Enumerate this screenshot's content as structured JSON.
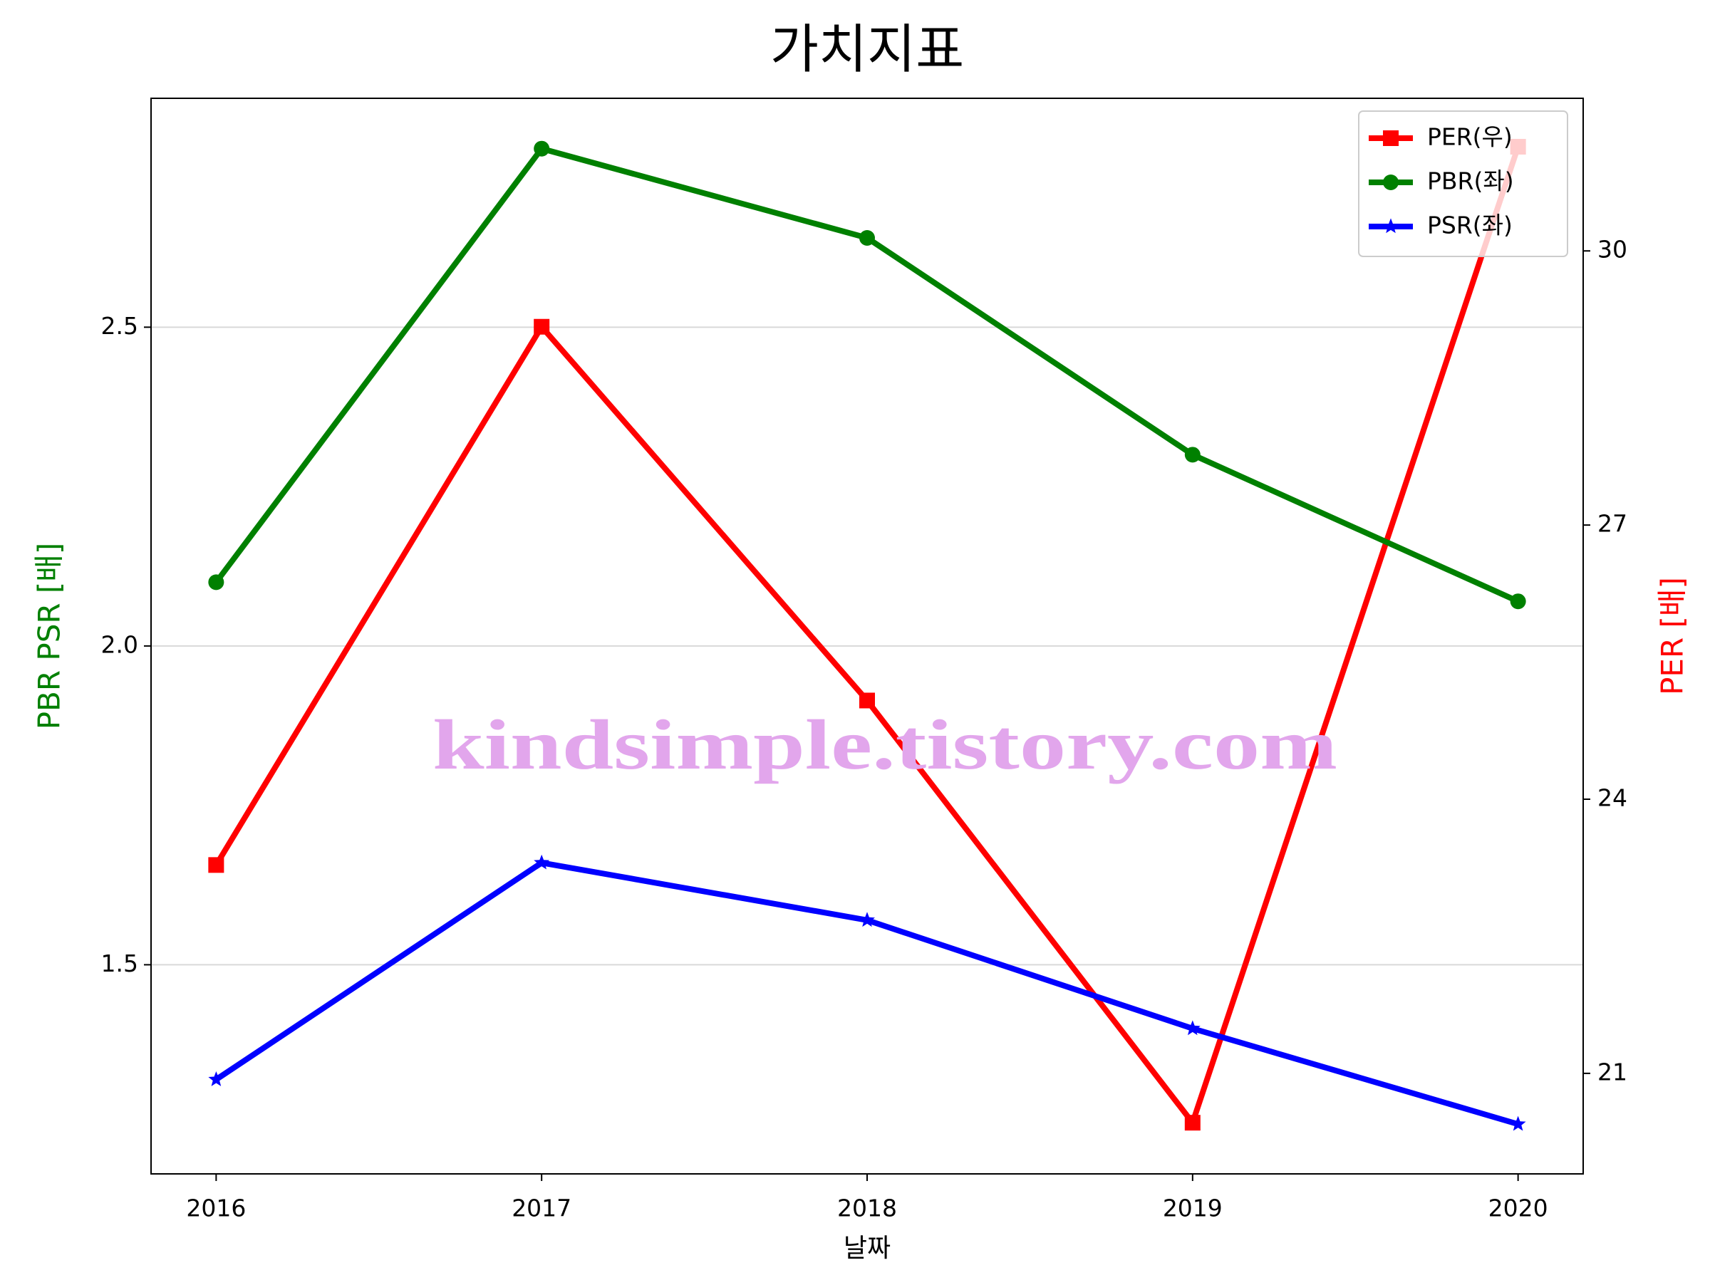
{
  "chart_data": {
    "type": "line",
    "title": "가치지표",
    "x_label": "날짜",
    "y_label": "PBR PSR [배]",
    "y2_label": "PER [배]",
    "annotation": "kindsimple.tistory.com",
    "x": [
      2016,
      2017,
      2018,
      2019,
      2020
    ],
    "xlim": [
      2015.8,
      2020.2
    ],
    "xticks": [
      2016,
      2017,
      2018,
      2019,
      2020
    ],
    "ylim": [
      1.172,
      2.859
    ],
    "yticks": [
      1.5,
      {
        "value": 2,
        "label": "2.0"
      },
      2.5
    ],
    "y2lim": [
      19.9,
      31.67
    ],
    "y2ticks": [
      21,
      24,
      27,
      30
    ],
    "grid": "y",
    "legend": "upper right",
    "series": [
      {
        "name": "PER(우)",
        "color": "#ff0000",
        "marker": "square",
        "axis": "y2",
        "values": [
          23.28,
          29.17,
          25.08,
          20.46,
          31.14
        ]
      },
      {
        "name": "PBR(좌)",
        "color": "#008000",
        "marker": "circle",
        "values": [
          2.1,
          2.78,
          2.64,
          2.3,
          2.07
        ]
      },
      {
        "name": "PSR(좌)",
        "color": "#0000ff",
        "marker": "star",
        "values": [
          1.32,
          1.66,
          1.57,
          1.4,
          1.25
        ]
      }
    ]
  }
}
